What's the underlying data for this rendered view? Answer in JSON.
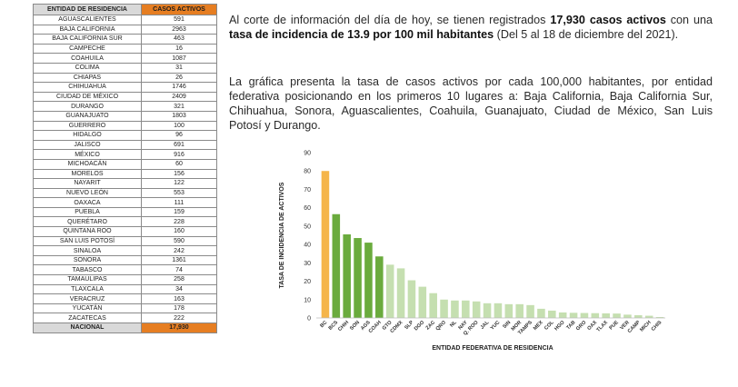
{
  "table": {
    "headers": [
      "ENTIDAD DE RESIDENCIA",
      "CASOS ACTIVOS"
    ],
    "rows": [
      [
        "AGUASCALIENTES",
        "591"
      ],
      [
        "BAJA CALIFORNIA",
        "2963"
      ],
      [
        "BAJA CALIFORNIA SUR",
        "463"
      ],
      [
        "CAMPECHE",
        "16"
      ],
      [
        "COAHUILA",
        "1087"
      ],
      [
        "COLIMA",
        "31"
      ],
      [
        "CHIAPAS",
        "26"
      ],
      [
        "CHIHUAHUA",
        "1746"
      ],
      [
        "CIUDAD DE MÉXICO",
        "2409"
      ],
      [
        "DURANGO",
        "321"
      ],
      [
        "GUANAJUATO",
        "1803"
      ],
      [
        "GUERRERO",
        "100"
      ],
      [
        "HIDALGO",
        "96"
      ],
      [
        "JALISCO",
        "691"
      ],
      [
        "MÉXICO",
        "916"
      ],
      [
        "MICHOACÁN",
        "60"
      ],
      [
        "MORELOS",
        "156"
      ],
      [
        "NAYARIT",
        "122"
      ],
      [
        "NUEVO LEÓN",
        "553"
      ],
      [
        "OAXACA",
        "111"
      ],
      [
        "PUEBLA",
        "159"
      ],
      [
        "QUERÉTARO",
        "228"
      ],
      [
        "QUINTANA ROO",
        "160"
      ],
      [
        "SAN LUIS POTOSÍ",
        "590"
      ],
      [
        "SINALOA",
        "242"
      ],
      [
        "SONORA",
        "1361"
      ],
      [
        "TABASCO",
        "74"
      ],
      [
        "TAMAULIPAS",
        "258"
      ],
      [
        "TLAXCALA",
        "34"
      ],
      [
        "VERACRUZ",
        "163"
      ],
      [
        "YUCATÁN",
        "178"
      ],
      [
        "ZACATECAS",
        "222"
      ]
    ],
    "total": [
      "NACIONAL",
      "17,930"
    ]
  },
  "text": {
    "p1_a": "Al corte de información del día de hoy, se tienen registrados ",
    "p1_b": "17,930 casos activos",
    "p1_c": " con una ",
    "p1_d": "tasa de incidencia de 13.9 por 100 mil habitantes",
    "p1_e": " (Del 5 al 18 de diciembre del 2021).",
    "p2": "La gráfica presenta la tasa de casos activos por cada 100,000 habitantes, por entidad federativa posicionando en los primeros 10 lugares a: Baja California, Baja California Sur, Chihuahua, Sonora, Aguascalientes, Coahuila, Guanajuato, Ciudad de México, San Luis Potosí y Durango."
  },
  "chart_data": {
    "type": "bar",
    "categories": [
      "BC",
      "BCS",
      "CHIH",
      "SON",
      "AGS",
      "COAH",
      "GTO",
      "CDMX",
      "SLP",
      "DGO",
      "ZAC",
      "QRO",
      "NL",
      "NAY",
      "Q. ROO",
      "JAL",
      "YUC",
      "SIN",
      "MOR",
      "TAMPS",
      "MEX",
      "COL",
      "HGO",
      "TAB",
      "GRO",
      "OAX",
      "TLAX",
      "PUE",
      "VER",
      "CAMP",
      "MICH",
      "CHIS"
    ],
    "values": [
      80,
      56.5,
      45.5,
      43.5,
      41,
      33.5,
      29,
      27,
      20.5,
      17,
      13.5,
      10,
      9.5,
      9.5,
      9,
      8,
      8,
      7.5,
      7.5,
      7,
      5,
      4,
      3,
      2.8,
      2.7,
      2.6,
      2.5,
      2.4,
      1.8,
      1.5,
      1.2,
      0.5
    ],
    "colors": [
      "#f5b54a",
      "#6aab3d",
      "#6aab3d",
      "#6aab3d",
      "#6aab3d",
      "#6aab3d",
      "#c5dfb0",
      "#c5dfb0",
      "#c5dfb0",
      "#c5dfb0",
      "#c5dfb0",
      "#c5dfb0",
      "#c5dfb0",
      "#c5dfb0",
      "#c5dfb0",
      "#c5dfb0",
      "#c5dfb0",
      "#c5dfb0",
      "#c5dfb0",
      "#c5dfb0",
      "#c5dfb0",
      "#c5dfb0",
      "#c5dfb0",
      "#c5dfb0",
      "#c5dfb0",
      "#c5dfb0",
      "#c5dfb0",
      "#c5dfb0",
      "#c5dfb0",
      "#c5dfb0",
      "#c5dfb0",
      "#c5dfb0"
    ],
    "yticks": [
      0,
      10,
      20,
      30,
      40,
      50,
      60,
      70,
      80,
      90
    ],
    "ylim": [
      0,
      90
    ],
    "xlabel": "ENTIDAD FEDERATIVA DE RESIDENCIA",
    "ylabel": "TASA DE INCIDENCIA DE ACTIVOS",
    "grid": false
  }
}
